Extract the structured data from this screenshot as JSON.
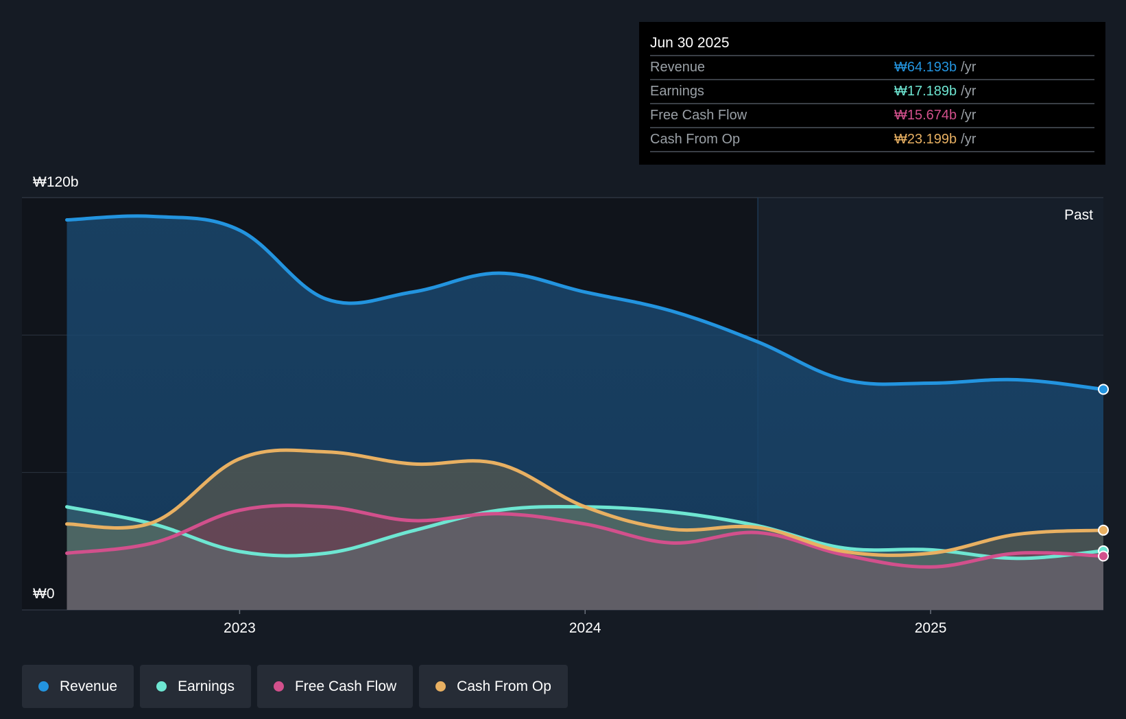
{
  "chart_data": {
    "type": "area",
    "title": "",
    "xlabel": "",
    "ylabel": "",
    "ylim": [
      0,
      120
    ],
    "y_unit": "b",
    "y_ticks": [
      {
        "value": 120,
        "label": "₩120b"
      },
      {
        "value": 0,
        "label": "₩0"
      }
    ],
    "x_ticks": [
      {
        "value": 2023.0,
        "label": "2023"
      },
      {
        "value": 2024.0,
        "label": "2024"
      },
      {
        "value": 2025.0,
        "label": "2025"
      }
    ],
    "xlim": [
      2022.37,
      2025.5
    ],
    "past_divider_x": 2024.5,
    "past_label": "Past",
    "x": [
      2022.5,
      2022.75,
      2023.0,
      2023.25,
      2023.5,
      2023.75,
      2024.0,
      2024.25,
      2024.5,
      2024.75,
      2025.0,
      2025.25,
      2025.5
    ],
    "series": [
      {
        "name": "Revenue",
        "color": "#2394df",
        "values": [
          113.5,
          114.5,
          110.5,
          90.5,
          92.5,
          98.0,
          92.5,
          87.0,
          78.0,
          67.0,
          66.0,
          67.0,
          64.193
        ]
      },
      {
        "name": "Earnings",
        "color": "#6ee6d2",
        "values": [
          30.0,
          25.0,
          17.0,
          16.5,
          23.0,
          29.0,
          30.0,
          28.5,
          24.5,
          18.0,
          17.5,
          15.0,
          17.189
        ]
      },
      {
        "name": "Free Cash Flow",
        "color": "#d2508c",
        "values": [
          16.5,
          19.5,
          29.0,
          30.0,
          26.0,
          28.0,
          25.0,
          19.5,
          22.5,
          16.0,
          12.5,
          16.5,
          15.674
        ]
      },
      {
        "name": "Cash From Op",
        "color": "#e8b062",
        "values": [
          25.0,
          25.5,
          44.0,
          46.0,
          42.5,
          42.5,
          30.0,
          23.5,
          24.0,
          17.0,
          16.5,
          22.0,
          23.199
        ]
      }
    ]
  },
  "tooltip": {
    "date": "Jun 30 2025",
    "unit": "/yr",
    "rows": [
      {
        "label": "Revenue",
        "value": "₩64.193b",
        "color": "#2394df"
      },
      {
        "label": "Earnings",
        "value": "₩17.189b",
        "color": "#6ee6d2"
      },
      {
        "label": "Free Cash Flow",
        "value": "₩15.674b",
        "color": "#d2508c"
      },
      {
        "label": "Cash From Op",
        "value": "₩23.199b",
        "color": "#e8b062"
      }
    ]
  },
  "legend": [
    {
      "label": "Revenue",
      "color": "#2394df"
    },
    {
      "label": "Earnings",
      "color": "#6ee6d2"
    },
    {
      "label": "Free Cash Flow",
      "color": "#d2508c"
    },
    {
      "label": "Cash From Op",
      "color": "#e8b062"
    }
  ]
}
